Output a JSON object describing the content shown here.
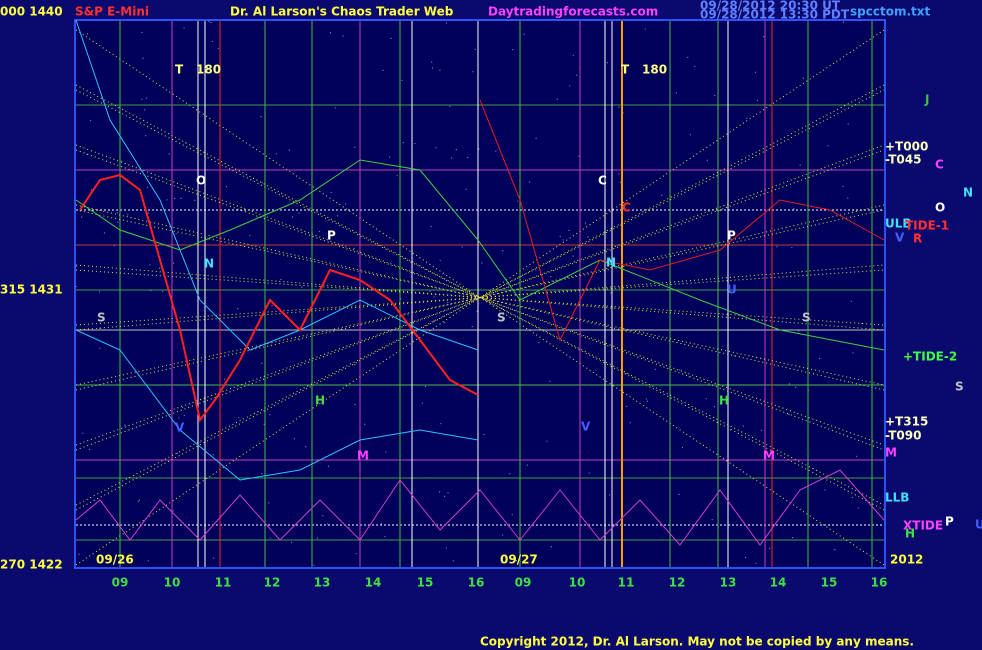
{
  "header": {
    "title": "S&P E-Mini",
    "author": "Dr. Al Larson's Chaos Trader Web",
    "site": "Daytradingforecasts.com",
    "stamp1": "09/28/2012 20:30 UT",
    "stamp2": "09/28/2012 13:30 PDT",
    "file": "spcctom.txt"
  },
  "price_labels": [
    "000 1440",
    "315 1431",
    "270 1422"
  ],
  "dates": [
    "09/26",
    "09/27",
    "2012"
  ],
  "hours": [
    "09",
    "10",
    "11",
    "12",
    "13",
    "14",
    "15",
    "16",
    "09",
    "10",
    "11",
    "12",
    "13",
    "14",
    "15",
    "16"
  ],
  "right_labels": [
    "+T000",
    "-T045",
    "ULB",
    "TIDE-1",
    "+TIDE-2",
    "+T315",
    "-T090",
    "M",
    "LLB",
    "XTIDE"
  ],
  "side_letters": [
    "J",
    "C",
    "N",
    "O",
    "V",
    "R",
    "S",
    "P",
    "U",
    "H"
  ],
  "plot_letters": [
    "T",
    "180",
    "O",
    "N",
    "S",
    "V",
    "H",
    "M",
    "P",
    "T",
    "180",
    "C",
    "C",
    "N",
    "S",
    "V",
    "H",
    "M",
    "P",
    "U",
    "S"
  ],
  "footer": "Copyright 2012, Dr. Al Larson. May not be copied by any means."
}
